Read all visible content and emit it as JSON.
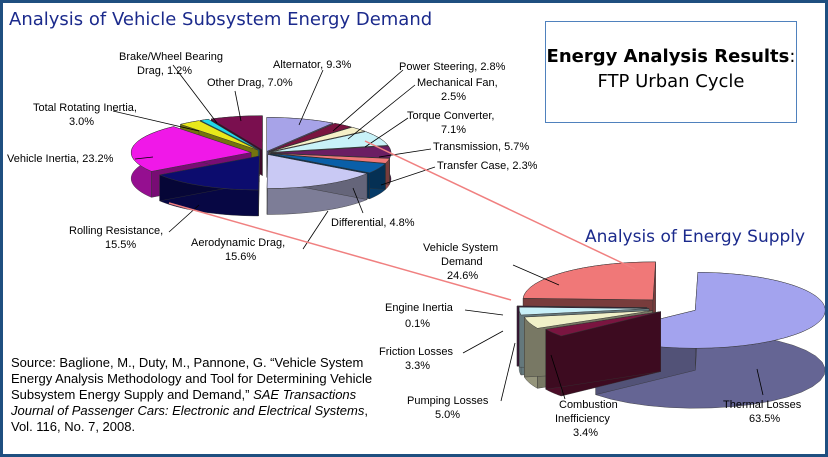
{
  "titles": {
    "demand": "Analysis of Vehicle Subsystem Energy Demand",
    "supply": "Analysis of Energy Supply"
  },
  "results_box": {
    "line1_bold": "Energy Analysis Results",
    "line1_colon": ":",
    "line2": "FTP Urban Cycle"
  },
  "source": {
    "text1": "Source: Baglione, M., Duty, M., Pannone, G.  “Vehicle System Energy Analysis Methodology and Tool for Determining Vehicle Subsystem Energy Supply and Demand,” ",
    "italic1": "SAE Transactions Journal of Passenger Cars: Electronic and Electrical Systems",
    "text2": ", Vol. 116, No. 7, 2008."
  },
  "chart_data": [
    {
      "type": "pie",
      "title": "Analysis of Vehicle Subsystem Energy Demand",
      "unit": "%",
      "slices": [
        {
          "label": "Alternator",
          "value": 9.3,
          "color": "#a7a3e8"
        },
        {
          "label": "Power Steering",
          "value": 2.8,
          "color": "#7a1540"
        },
        {
          "label": "Mechanical Fan",
          "value": 2.5,
          "color": "#f5f0c8"
        },
        {
          "label": "Torque Converter",
          "value": 7.1,
          "color": "#c8f2f8"
        },
        {
          "label": "Transmission",
          "value": 5.7,
          "color": "#6b1e63"
        },
        {
          "label": "Transfer Case",
          "value": 2.3,
          "color": "#f07878"
        },
        {
          "label": "Differential",
          "value": 4.8,
          "color": "#0a5fa8"
        },
        {
          "label": "Aerodynamic Drag",
          "value": 15.6,
          "color": "#c9c9f4"
        },
        {
          "label": "Rolling Resistance",
          "value": 15.5,
          "color": "#0c0c6e"
        },
        {
          "label": "Vehicle Inertia",
          "value": 23.2,
          "color": "#f018e8"
        },
        {
          "label": "Total Rotating Inertia",
          "value": 3.0,
          "color": "#e8e81a"
        },
        {
          "label": "Brake/Wheel Bearing Drag",
          "value": 1.2,
          "color": "#20d8e8"
        },
        {
          "label": "Other Drag",
          "value": 7.0,
          "color": "#7a0f4f"
        }
      ]
    },
    {
      "type": "pie",
      "title": "Analysis of Energy Supply",
      "unit": "%",
      "slices": [
        {
          "label": "Thermal Losses",
          "value": 63.5,
          "color": "#a3a3ee"
        },
        {
          "label": "Combustion Inefficiency",
          "value": 3.4,
          "color": "#7a1540"
        },
        {
          "label": "Pumping Losses",
          "value": 5.0,
          "color": "#f0f0c8"
        },
        {
          "label": "Friction Losses",
          "value": 3.3,
          "color": "#c8f0f8"
        },
        {
          "label": "Engine Inertia",
          "value": 0.1,
          "color": "#6b1e63"
        },
        {
          "label": "Vehicle System Demand",
          "value": 24.6,
          "color": "#f07878"
        }
      ]
    }
  ],
  "labels": {
    "alternator": "Alternator, 9.3%",
    "power_steering": "Power Steering, 2.8%",
    "mechanical_fan_1": "Mechanical Fan,",
    "mechanical_fan_2": "2.5%",
    "torque_converter_1": "Torque Converter,",
    "torque_converter_2": "7.1%",
    "transmission": "Transmission, 5.7%",
    "transfer_case": "Transfer Case, 2.3%",
    "differential": "Differential, 4.8%",
    "aero_1": "Aerodynamic Drag,",
    "aero_2": "15.6%",
    "rolling_1": "Rolling Resistance,",
    "rolling_2": "15.5%",
    "vehicle_inertia": "Vehicle Inertia, 23.2%",
    "rotating_1": "Total Rotating Inertia,",
    "rotating_2": "3.0%",
    "brake_1": "Brake/Wheel Bearing",
    "brake_2": "Drag, 1.2%",
    "other_drag": "Other Drag, 7.0%",
    "vsd_1": "Vehicle System",
    "vsd_2": "Demand",
    "vsd_3": "24.6%",
    "engine_inertia_1": "Engine Inertia",
    "engine_inertia_2": "0.1%",
    "friction_1": "Friction Losses",
    "friction_2": "3.3%",
    "pumping_1": "Pumping Losses",
    "pumping_2": "5.0%",
    "combustion_1": "Combustion",
    "combustion_2": "Inefficiency",
    "combustion_3": "3.4%",
    "thermal_1": "Thermal Losses",
    "thermal_2": "63.5%"
  }
}
